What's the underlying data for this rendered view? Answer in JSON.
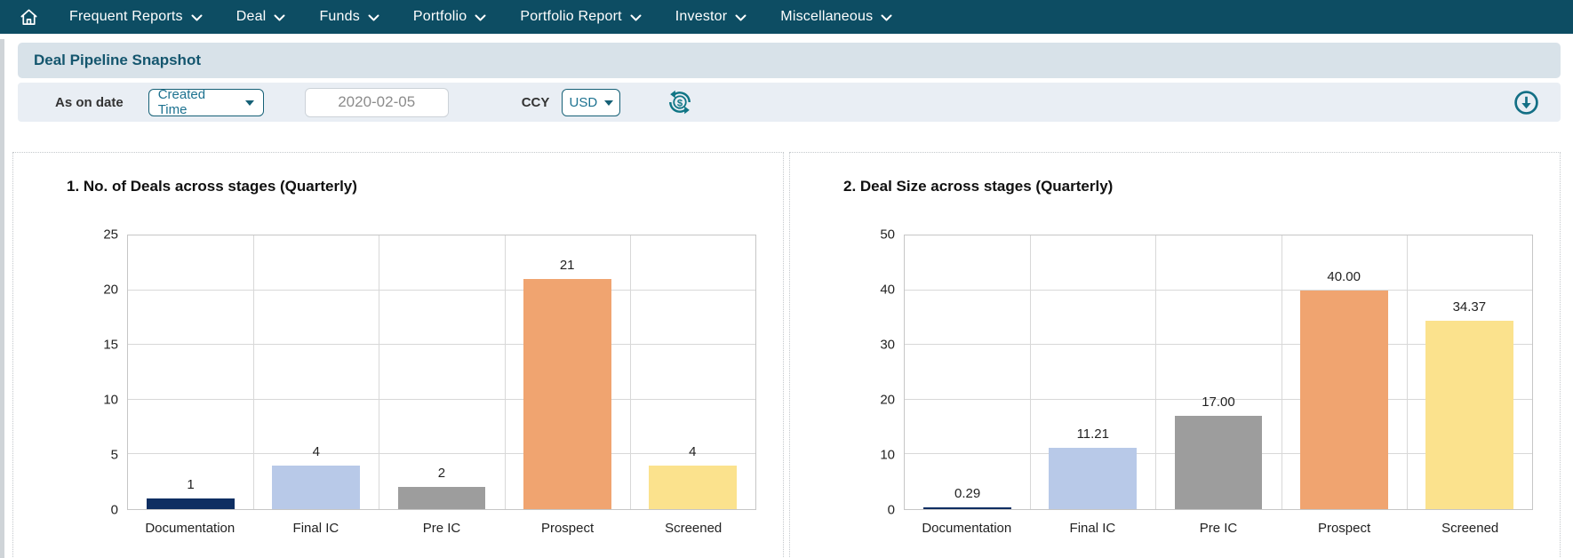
{
  "nav": {
    "home_icon": "home-icon",
    "items": [
      {
        "label": "Frequent Reports"
      },
      {
        "label": "Deal"
      },
      {
        "label": "Funds"
      },
      {
        "label": "Portfolio"
      },
      {
        "label": "Portfolio Report"
      },
      {
        "label": "Investor"
      },
      {
        "label": "Miscellaneous"
      }
    ]
  },
  "header": {
    "title": "Deal Pipeline Snapshot"
  },
  "filters": {
    "as_on_date_label": "As on date",
    "date_type_value": "Created Time",
    "date_value": "2020-02-05",
    "ccy_label": "CCY",
    "ccy_value": "USD",
    "icons": {
      "refresh": "currency-refresh-icon",
      "download": "download-icon"
    }
  },
  "colors": {
    "nav_bg": "#0d4d63",
    "header_bg": "#d8e2e9",
    "filter_bg": "#e9eef4",
    "accent_teal": "#156076",
    "accent_teal_text": "#1d7290",
    "icon_teal": "#0f7585",
    "bar_documentation": "#0e2e62",
    "bar_final_ic": "#b8c9e8",
    "bar_pre_ic": "#9d9d9d",
    "bar_prospect": "#f0a470",
    "bar_screened": "#fbe28d"
  },
  "chart_data": [
    {
      "type": "bar",
      "title": "1. No. of Deals across stages (Quarterly)",
      "categories": [
        "Documentation",
        "Final IC",
        "Pre IC",
        "Prospect",
        "Screened"
      ],
      "values": [
        1,
        4,
        2,
        21,
        4
      ],
      "labels": [
        "1",
        "4",
        "2",
        "21",
        "4"
      ],
      "bar_colors": [
        "#0e2e62",
        "#b8c9e8",
        "#9d9d9d",
        "#f0a470",
        "#fbe28d"
      ],
      "xlabel": "",
      "ylabel": "",
      "ylim": [
        0,
        25
      ],
      "yticks": [
        0,
        5,
        10,
        15,
        20,
        25
      ],
      "grid": true,
      "legend": false
    },
    {
      "type": "bar",
      "title": "2. Deal Size across stages (Quarterly)",
      "categories": [
        "Documentation",
        "Final IC",
        "Pre IC",
        "Prospect",
        "Screened"
      ],
      "values": [
        0.29,
        11.21,
        17.0,
        40.0,
        34.37
      ],
      "labels": [
        "0.29",
        "11.21",
        "17.00",
        "40.00",
        "34.37"
      ],
      "bar_colors": [
        "#0e2e62",
        "#b8c9e8",
        "#9d9d9d",
        "#f0a470",
        "#fbe28d"
      ],
      "xlabel": "",
      "ylabel": "",
      "ylim": [
        0,
        50
      ],
      "yticks": [
        0,
        10,
        20,
        30,
        40,
        50
      ],
      "grid": true,
      "legend": false
    }
  ]
}
